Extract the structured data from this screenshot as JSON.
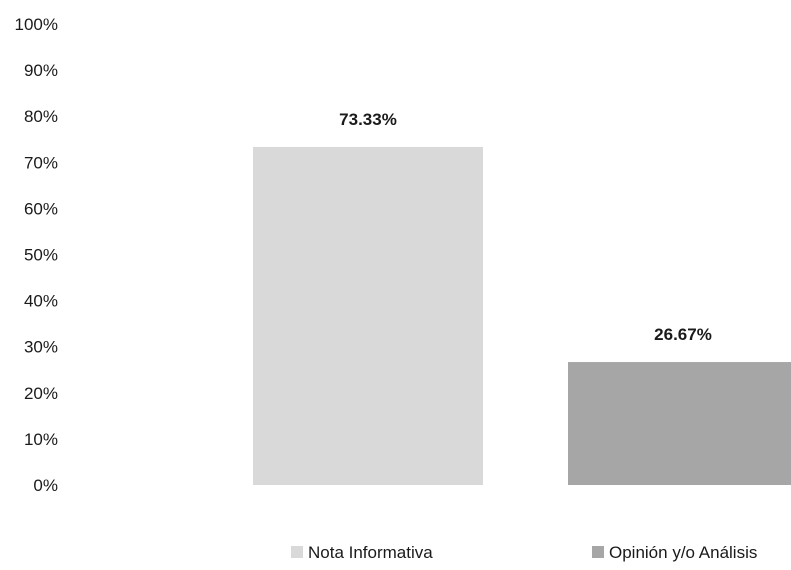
{
  "chart_data": {
    "type": "bar",
    "categories": [
      "Nota Informativa",
      "Opinión y/o Análisis"
    ],
    "values": [
      73.33,
      26.67
    ],
    "data_labels": [
      "73.33%",
      "26.67%"
    ],
    "colors": [
      "#d9d9d9",
      "#a6a6a6"
    ],
    "ylim": [
      0,
      100
    ],
    "yticks": [
      0,
      10,
      20,
      30,
      40,
      50,
      60,
      70,
      80,
      90,
      100
    ],
    "ytick_labels": [
      "0%",
      "10%",
      "20%",
      "30%",
      "40%",
      "50%",
      "60%",
      "70%",
      "80%",
      "90%",
      "100%"
    ],
    "grid": false,
    "legend": {
      "position": "bottom",
      "entries": [
        "Nota Informativa",
        "Opinión y/o Análisis"
      ]
    },
    "title": "",
    "xlabel": "",
    "ylabel": ""
  }
}
